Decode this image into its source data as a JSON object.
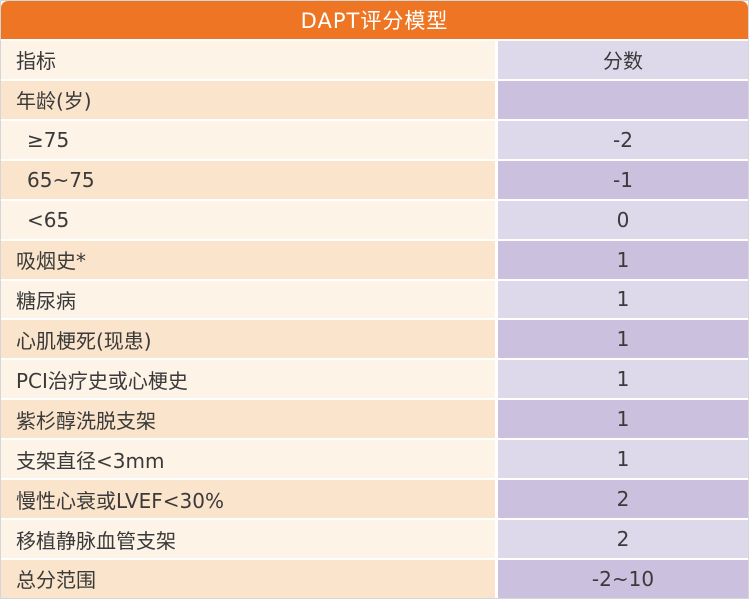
{
  "title": "DAPT评分模型",
  "header": {
    "indicator": "指标",
    "score": "分数"
  },
  "rows": [
    {
      "indicator": "年龄(岁)",
      "score": ""
    },
    {
      "indicator": "≥75",
      "score": "-2"
    },
    {
      "indicator": "65~75",
      "score": "-1"
    },
    {
      "indicator": "<65",
      "score": "0"
    },
    {
      "indicator": "吸烟史*",
      "score": "1"
    },
    {
      "indicator": "糖尿病",
      "score": "1"
    },
    {
      "indicator": "心肌梗死(现患)",
      "score": "1"
    },
    {
      "indicator": "PCI治疗史或心梗史",
      "score": "1"
    },
    {
      "indicator": "紫杉醇洗脱支架",
      "score": "1"
    },
    {
      "indicator": "支架直径<3mm",
      "score": "1"
    },
    {
      "indicator": "慢性心衰或LVEF<30%",
      "score": "2"
    },
    {
      "indicator": "移植静脉血管支架",
      "score": "2"
    },
    {
      "indicator": "总分范围",
      "score": "-2~10"
    }
  ],
  "colors": {
    "header_bar": "#ee7523",
    "title_text": "#ffffff",
    "left_light": "#fdf3e7",
    "left_dark": "#fae4cc",
    "right_light": "#ded8eb",
    "right_dark": "#cbc0de",
    "text": "#3a3a3a"
  },
  "chart_data": {
    "type": "table",
    "title": "DAPT评分模型",
    "columns": [
      "指标",
      "分数"
    ],
    "rows": [
      [
        "年龄(岁)",
        ""
      ],
      [
        "≥75",
        "-2"
      ],
      [
        "65~75",
        "-1"
      ],
      [
        "<65",
        "0"
      ],
      [
        "吸烟史*",
        "1"
      ],
      [
        "糖尿病",
        "1"
      ],
      [
        "心肌梗死(现患)",
        "1"
      ],
      [
        "PCI治疗史或心梗史",
        "1"
      ],
      [
        "紫杉醇洗脱支架",
        "1"
      ],
      [
        "支架直径<3mm",
        "1"
      ],
      [
        "慢性心衰或LVEF<30%",
        "2"
      ],
      [
        "移植静脉血管支架",
        "2"
      ],
      [
        "总分范围",
        "-2~10"
      ]
    ],
    "layout": {
      "score_range": [
        -2,
        10
      ],
      "legend": "none",
      "grid": "white separators"
    }
  }
}
